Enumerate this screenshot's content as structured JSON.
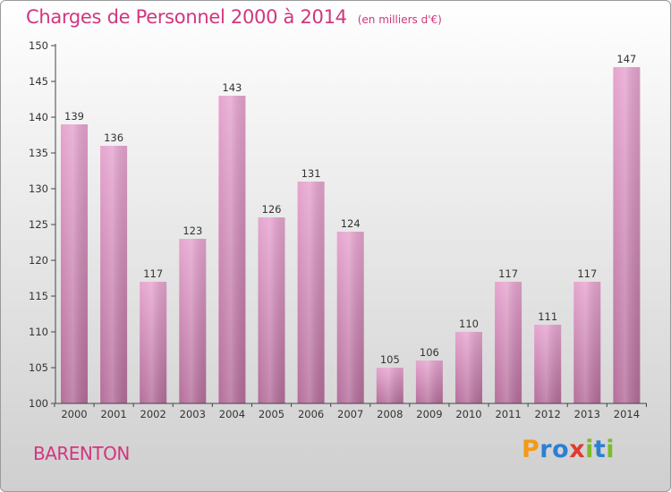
{
  "header": {
    "title": "Charges de Personnel 2000 à 2014",
    "subtitle": "(en milliers d'€)"
  },
  "footer": {
    "location": "BARENTON",
    "brand": "Proxiti",
    "brand_letters": [
      {
        "ch": "P",
        "color": "#f39a16"
      },
      {
        "ch": "r",
        "color": "#2d7fd2"
      },
      {
        "ch": "o",
        "color": "#2d7fd2"
      },
      {
        "ch": "x",
        "color": "#e23a2e"
      },
      {
        "ch": "i",
        "color": "#7cbb2a"
      },
      {
        "ch": "t",
        "color": "#2d7fd2"
      },
      {
        "ch": "i",
        "color": "#7cbb2a"
      }
    ]
  },
  "colors": {
    "bar_top": "#e6a5cf",
    "bar_bottom": "#b56e9b",
    "accent": "#d1367f"
  },
  "chart_data": {
    "type": "bar",
    "categories": [
      "2000",
      "2001",
      "2002",
      "2003",
      "2004",
      "2005",
      "2006",
      "2007",
      "2008",
      "2009",
      "2010",
      "2011",
      "2012",
      "2013",
      "2014"
    ],
    "values": [
      139,
      136,
      117,
      123,
      143,
      126,
      131,
      124,
      105,
      106,
      110,
      117,
      111,
      117,
      147
    ],
    "ylim": [
      100,
      150
    ],
    "yticks": [
      100,
      105,
      110,
      115,
      120,
      125,
      130,
      135,
      140,
      145,
      150
    ],
    "grid": false
  }
}
